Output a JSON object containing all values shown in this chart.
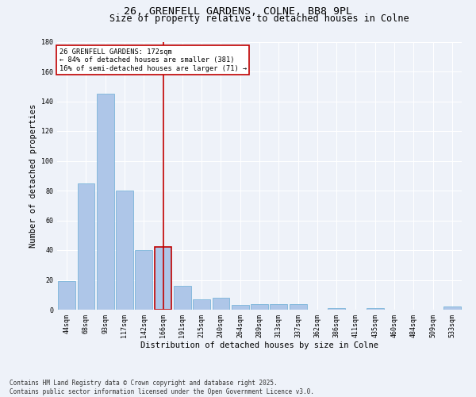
{
  "title_line1": "26, GRENFELL GARDENS, COLNE, BB8 9PL",
  "title_line2": "Size of property relative to detached houses in Colne",
  "xlabel": "Distribution of detached houses by size in Colne",
  "ylabel": "Number of detached properties",
  "categories": [
    "44sqm",
    "68sqm",
    "93sqm",
    "117sqm",
    "142sqm",
    "166sqm",
    "191sqm",
    "215sqm",
    "240sqm",
    "264sqm",
    "289sqm",
    "313sqm",
    "337sqm",
    "362sqm",
    "386sqm",
    "411sqm",
    "435sqm",
    "460sqm",
    "484sqm",
    "509sqm",
    "533sqm"
  ],
  "values": [
    19,
    85,
    145,
    80,
    40,
    42,
    16,
    7,
    8,
    3,
    4,
    4,
    4,
    0,
    1,
    0,
    1,
    0,
    0,
    0,
    2
  ],
  "bar_color": "#aec6e8",
  "bar_edgecolor": "#6baed6",
  "highlight_index": 5,
  "highlight_bar_edgecolor": "#c00000",
  "vline_color": "#c00000",
  "ylim": [
    0,
    180
  ],
  "yticks": [
    0,
    20,
    40,
    60,
    80,
    100,
    120,
    140,
    160,
    180
  ],
  "annotation_text": "26 GRENFELL GARDENS: 172sqm\n← 84% of detached houses are smaller (381)\n16% of semi-detached houses are larger (71) →",
  "annotation_box_edgecolor": "#c00000",
  "annotation_box_facecolor": "#ffffff",
  "footnote": "Contains HM Land Registry data © Crown copyright and database right 2025.\nContains public sector information licensed under the Open Government Licence v3.0.",
  "background_color": "#eef2f9",
  "grid_color": "#ffffff",
  "title_fontsize": 9.5,
  "subtitle_fontsize": 8.5,
  "axis_label_fontsize": 7.5,
  "tick_fontsize": 6,
  "annotation_fontsize": 6.2,
  "footnote_fontsize": 5.5
}
